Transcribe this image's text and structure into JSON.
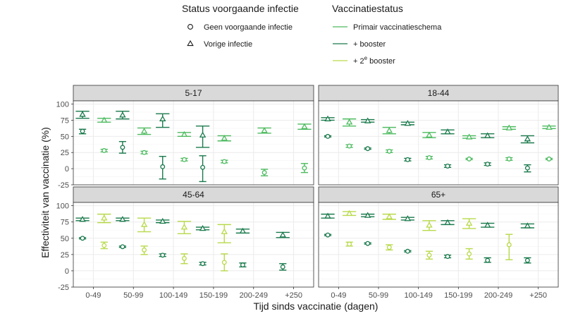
{
  "chart_data": {
    "type": "scatter",
    "xlabel": "Tijd sinds vaccinatie (dagen)",
    "ylabel": "Effectiviteit van vaccinatie (%)",
    "ylim": [
      -25,
      105
    ],
    "yticks": [
      100,
      75,
      50,
      25,
      0,
      -25
    ],
    "ytick_labels": [
      "100",
      "75",
      "50",
      "25",
      "0",
      "-25"
    ],
    "categories": [
      "0-49",
      "50-99",
      "100-149",
      "150-199",
      "200-249",
      "+250"
    ],
    "legend": {
      "infection_title": "Status voorgaande infectie",
      "infection_items": [
        {
          "shape": "circle",
          "label": "Geen voorgaande infectie"
        },
        {
          "shape": "triangle",
          "label": "Vorige infectie"
        }
      ],
      "vaccination_title": "Vaccinatiestatus",
      "vaccination_items": [
        {
          "key": "primary",
          "label": "Primair vaccinatieschema",
          "sup": ""
        },
        {
          "key": "booster",
          "label": "+ booster",
          "sup": ""
        },
        {
          "key": "booster2",
          "label_pre": "+ 2",
          "sup": "e",
          "label_post": " booster"
        }
      ]
    },
    "colors": {
      "primary": "#4dbb5f",
      "booster": "#1a7a4c",
      "booster2": "#b8d94a",
      "panel_strip": "#d9d9d9",
      "grid": "#ebebeb"
    },
    "panels": [
      {
        "title": "5-17",
        "points": [
          {
            "x": "0-49",
            "status": "booster",
            "shape": "circle",
            "y": 58,
            "lo": 54,
            "hi": 61
          },
          {
            "x": "0-49",
            "status": "booster",
            "shape": "triangle",
            "y": 84,
            "lo": 78,
            "hi": 89
          },
          {
            "x": "0-49",
            "status": "primary",
            "shape": "circle",
            "y": 28,
            "lo": 26,
            "hi": 30
          },
          {
            "x": "0-49",
            "status": "primary",
            "shape": "triangle",
            "y": 75,
            "lo": 72,
            "hi": 78
          },
          {
            "x": "50-99",
            "status": "booster",
            "shape": "circle",
            "y": 33,
            "lo": 24,
            "hi": 42
          },
          {
            "x": "50-99",
            "status": "booster",
            "shape": "triangle",
            "y": 83,
            "lo": 77,
            "hi": 89
          },
          {
            "x": "50-99",
            "status": "primary",
            "shape": "circle",
            "y": 25,
            "lo": 23,
            "hi": 27
          },
          {
            "x": "50-99",
            "status": "primary",
            "shape": "triangle",
            "y": 58,
            "lo": 53,
            "hi": 63
          },
          {
            "x": "100-149",
            "status": "booster",
            "shape": "circle",
            "y": 3,
            "lo": -16,
            "hi": 19
          },
          {
            "x": "100-149",
            "status": "booster",
            "shape": "triangle",
            "y": 77,
            "lo": 64,
            "hi": 85
          },
          {
            "x": "100-149",
            "status": "primary",
            "shape": "circle",
            "y": 14,
            "lo": 12,
            "hi": 16
          },
          {
            "x": "100-149",
            "status": "primary",
            "shape": "triangle",
            "y": 53,
            "lo": 50,
            "hi": 56
          },
          {
            "x": "150-199",
            "status": "booster",
            "shape": "circle",
            "y": 2,
            "lo": -20,
            "hi": 20
          },
          {
            "x": "150-199",
            "status": "booster",
            "shape": "triangle",
            "y": 52,
            "lo": 33,
            "hi": 66
          },
          {
            "x": "150-199",
            "status": "primary",
            "shape": "circle",
            "y": 11,
            "lo": 9,
            "hi": 13
          },
          {
            "x": "150-199",
            "status": "primary",
            "shape": "triangle",
            "y": 47,
            "lo": 43,
            "hi": 51
          },
          {
            "x": "200-249",
            "status": "primary",
            "shape": "circle",
            "y": -6,
            "lo": -11,
            "hi": -1
          },
          {
            "x": "200-249",
            "status": "primary",
            "shape": "triangle",
            "y": 59,
            "lo": 55,
            "hi": 63
          },
          {
            "x": "+250",
            "status": "primary",
            "shape": "circle",
            "y": 1,
            "lo": -6,
            "hi": 8
          },
          {
            "x": "+250",
            "status": "primary",
            "shape": "triangle",
            "y": 65,
            "lo": 61,
            "hi": 69
          }
        ]
      },
      {
        "title": "18-44",
        "points": [
          {
            "x": "0-49",
            "status": "booster",
            "shape": "circle",
            "y": 50,
            "lo": 49,
            "hi": 51
          },
          {
            "x": "0-49",
            "status": "booster",
            "shape": "triangle",
            "y": 77,
            "lo": 75,
            "hi": 79
          },
          {
            "x": "0-49",
            "status": "primary",
            "shape": "circle",
            "y": 35,
            "lo": 33,
            "hi": 37
          },
          {
            "x": "0-49",
            "status": "primary",
            "shape": "triangle",
            "y": 72,
            "lo": 66,
            "hi": 77
          },
          {
            "x": "50-99",
            "status": "booster",
            "shape": "circle",
            "y": 31,
            "lo": 30,
            "hi": 32
          },
          {
            "x": "50-99",
            "status": "booster",
            "shape": "triangle",
            "y": 74,
            "lo": 72,
            "hi": 76
          },
          {
            "x": "50-99",
            "status": "primary",
            "shape": "circle",
            "y": 27,
            "lo": 25,
            "hi": 29
          },
          {
            "x": "50-99",
            "status": "primary",
            "shape": "triangle",
            "y": 59,
            "lo": 54,
            "hi": 64
          },
          {
            "x": "100-149",
            "status": "booster",
            "shape": "circle",
            "y": 14,
            "lo": 12,
            "hi": 16
          },
          {
            "x": "100-149",
            "status": "booster",
            "shape": "triangle",
            "y": 70,
            "lo": 68,
            "hi": 72
          },
          {
            "x": "100-149",
            "status": "primary",
            "shape": "circle",
            "y": 17,
            "lo": 15,
            "hi": 19
          },
          {
            "x": "100-149",
            "status": "primary",
            "shape": "triangle",
            "y": 52,
            "lo": 48,
            "hi": 56
          },
          {
            "x": "150-199",
            "status": "booster",
            "shape": "circle",
            "y": 4,
            "lo": 2,
            "hi": 6
          },
          {
            "x": "150-199",
            "status": "booster",
            "shape": "triangle",
            "y": 57,
            "lo": 54,
            "hi": 60
          },
          {
            "x": "150-199",
            "status": "primary",
            "shape": "circle",
            "y": 15,
            "lo": 14,
            "hi": 16
          },
          {
            "x": "150-199",
            "status": "primary",
            "shape": "triangle",
            "y": 49,
            "lo": 47,
            "hi": 51
          },
          {
            "x": "200-249",
            "status": "booster",
            "shape": "circle",
            "y": 7,
            "lo": 5,
            "hi": 9
          },
          {
            "x": "200-249",
            "status": "booster",
            "shape": "triangle",
            "y": 51,
            "lo": 48,
            "hi": 54
          },
          {
            "x": "200-249",
            "status": "primary",
            "shape": "circle",
            "y": 15,
            "lo": 13,
            "hi": 17
          },
          {
            "x": "200-249",
            "status": "primary",
            "shape": "triangle",
            "y": 63,
            "lo": 61,
            "hi": 65
          },
          {
            "x": "+250",
            "status": "booster",
            "shape": "circle",
            "y": 1,
            "lo": -5,
            "hi": 6
          },
          {
            "x": "+250",
            "status": "booster",
            "shape": "triangle",
            "y": 46,
            "lo": 40,
            "hi": 51
          },
          {
            "x": "+250",
            "status": "primary",
            "shape": "circle",
            "y": 15,
            "lo": 14,
            "hi": 16
          },
          {
            "x": "+250",
            "status": "primary",
            "shape": "triangle",
            "y": 64,
            "lo": 62,
            "hi": 66
          }
        ]
      },
      {
        "title": "45-64",
        "points": [
          {
            "x": "0-49",
            "status": "booster",
            "shape": "circle",
            "y": 50,
            "lo": 49,
            "hi": 51
          },
          {
            "x": "0-49",
            "status": "booster",
            "shape": "triangle",
            "y": 79,
            "lo": 77,
            "hi": 81
          },
          {
            "x": "0-49",
            "status": "booster2",
            "shape": "circle",
            "y": 39,
            "lo": 34,
            "hi": 44
          },
          {
            "x": "0-49",
            "status": "booster2",
            "shape": "triangle",
            "y": 81,
            "lo": 74,
            "hi": 87
          },
          {
            "x": "50-99",
            "status": "booster",
            "shape": "circle",
            "y": 37,
            "lo": 36,
            "hi": 38
          },
          {
            "x": "50-99",
            "status": "booster",
            "shape": "triangle",
            "y": 79,
            "lo": 77,
            "hi": 81
          },
          {
            "x": "50-99",
            "status": "booster2",
            "shape": "circle",
            "y": 32,
            "lo": 25,
            "hi": 38
          },
          {
            "x": "50-99",
            "status": "booster2",
            "shape": "triangle",
            "y": 71,
            "lo": 60,
            "hi": 81
          },
          {
            "x": "100-149",
            "status": "booster",
            "shape": "circle",
            "y": 24,
            "lo": 22,
            "hi": 26
          },
          {
            "x": "100-149",
            "status": "booster",
            "shape": "triangle",
            "y": 76,
            "lo": 74,
            "hi": 78
          },
          {
            "x": "100-149",
            "status": "booster2",
            "shape": "circle",
            "y": 19,
            "lo": 11,
            "hi": 26
          },
          {
            "x": "100-149",
            "status": "booster2",
            "shape": "triangle",
            "y": 67,
            "lo": 57,
            "hi": 76
          },
          {
            "x": "150-199",
            "status": "booster",
            "shape": "circle",
            "y": 11,
            "lo": 9,
            "hi": 13
          },
          {
            "x": "150-199",
            "status": "booster",
            "shape": "triangle",
            "y": 65,
            "lo": 63,
            "hi": 67
          },
          {
            "x": "150-199",
            "status": "booster2",
            "shape": "circle",
            "y": 13,
            "lo": 0,
            "hi": 26
          },
          {
            "x": "150-199",
            "status": "booster2",
            "shape": "triangle",
            "y": 60,
            "lo": 43,
            "hi": 71
          },
          {
            "x": "200-249",
            "status": "booster",
            "shape": "circle",
            "y": 9,
            "lo": 6,
            "hi": 12
          },
          {
            "x": "200-249",
            "status": "booster",
            "shape": "triangle",
            "y": 61,
            "lo": 58,
            "hi": 64
          },
          {
            "x": "+250",
            "status": "booster",
            "shape": "circle",
            "y": 6,
            "lo": 1,
            "hi": 11
          },
          {
            "x": "+250",
            "status": "booster",
            "shape": "triangle",
            "y": 55,
            "lo": 51,
            "hi": 59
          }
        ]
      },
      {
        "title": "65+",
        "points": [
          {
            "x": "0-49",
            "status": "booster",
            "shape": "circle",
            "y": 55,
            "lo": 54,
            "hi": 56
          },
          {
            "x": "0-49",
            "status": "booster",
            "shape": "triangle",
            "y": 84,
            "lo": 81,
            "hi": 87
          },
          {
            "x": "0-49",
            "status": "booster2",
            "shape": "circle",
            "y": 41,
            "lo": 38,
            "hi": 44
          },
          {
            "x": "0-49",
            "status": "booster2",
            "shape": "triangle",
            "y": 88,
            "lo": 85,
            "hi": 91
          },
          {
            "x": "50-99",
            "status": "booster",
            "shape": "circle",
            "y": 42,
            "lo": 41,
            "hi": 43
          },
          {
            "x": "50-99",
            "status": "booster",
            "shape": "triangle",
            "y": 85,
            "lo": 83,
            "hi": 87
          },
          {
            "x": "50-99",
            "status": "booster2",
            "shape": "circle",
            "y": 36,
            "lo": 32,
            "hi": 40
          },
          {
            "x": "50-99",
            "status": "booster2",
            "shape": "triangle",
            "y": 83,
            "lo": 79,
            "hi": 87
          },
          {
            "x": "100-149",
            "status": "booster",
            "shape": "circle",
            "y": 30,
            "lo": 29,
            "hi": 31
          },
          {
            "x": "100-149",
            "status": "booster",
            "shape": "triangle",
            "y": 80,
            "lo": 78,
            "hi": 82
          },
          {
            "x": "100-149",
            "status": "booster2",
            "shape": "circle",
            "y": 24,
            "lo": 18,
            "hi": 30
          },
          {
            "x": "100-149",
            "status": "booster2",
            "shape": "triangle",
            "y": 70,
            "lo": 62,
            "hi": 77
          },
          {
            "x": "150-199",
            "status": "booster",
            "shape": "circle",
            "y": 22,
            "lo": 20,
            "hi": 24
          },
          {
            "x": "150-199",
            "status": "booster",
            "shape": "triangle",
            "y": 74,
            "lo": 71,
            "hi": 77
          },
          {
            "x": "150-199",
            "status": "booster2",
            "shape": "circle",
            "y": 26,
            "lo": 18,
            "hi": 34
          },
          {
            "x": "150-199",
            "status": "booster2",
            "shape": "triangle",
            "y": 73,
            "lo": 65,
            "hi": 80
          },
          {
            "x": "200-249",
            "status": "booster",
            "shape": "circle",
            "y": 16,
            "lo": 13,
            "hi": 20
          },
          {
            "x": "200-249",
            "status": "booster",
            "shape": "triangle",
            "y": 70,
            "lo": 67,
            "hi": 73
          },
          {
            "x": "200-249",
            "status": "booster2",
            "shape": "circle",
            "y": 40,
            "lo": 17,
            "hi": 56
          },
          {
            "x": "+250",
            "status": "booster",
            "shape": "circle",
            "y": 16,
            "lo": 12,
            "hi": 20
          },
          {
            "x": "+250",
            "status": "booster",
            "shape": "triangle",
            "y": 69,
            "lo": 66,
            "hi": 72
          }
        ]
      }
    ]
  }
}
